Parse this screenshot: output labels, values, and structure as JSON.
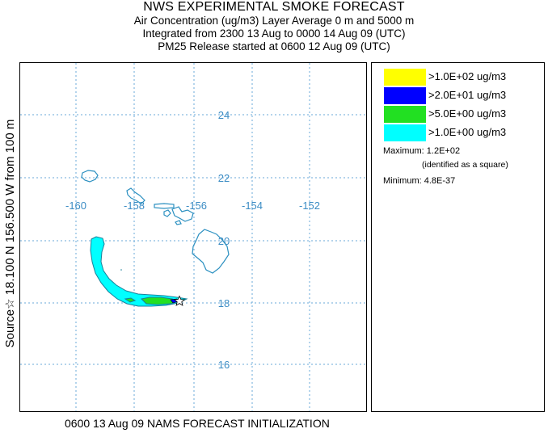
{
  "header": {
    "title": "NWS EXPERIMENTAL SMOKE FORECAST",
    "line2": "Air Concentration (ug/m3) Layer Average    0 m and  5000 m",
    "line3": "Integrated from 2300 13 Aug to 0000 14 Aug 09 (UTC)",
    "line4": "PM25 Release started at 0600 12 Aug 09 (UTC)"
  },
  "side_label": "Source☆ 18.100 N 156.500 W   from  100 m",
  "footer": "0600 13 Aug 09 NAMS FORECAST INITIALIZATION",
  "map": {
    "lon_labels": [
      "-160",
      "-158",
      "-156",
      "-154",
      "-152"
    ],
    "lat_labels": [
      "24",
      "22",
      "20",
      "18",
      "16"
    ],
    "grid_color": "#6aaad8",
    "label_color": "#3b8cc4",
    "coast_color": "#2a8fc0"
  },
  "legend": {
    "items": [
      {
        "label": ">1.0E+02 ug/m3",
        "color": "#ffff00"
      },
      {
        "label": ">2.0E+01 ug/m3",
        "color": "#0000ff"
      },
      {
        "label": ">5.0E+00 ug/m3",
        "color": "#22e022"
      },
      {
        "label": ">1.0E+00 ug/m3",
        "color": "#00ffff"
      }
    ],
    "maximum": "Maximum: 1.2E+02",
    "maximum_note": "(identified as a square)",
    "minimum": "Minimum: 4.8E-37"
  }
}
